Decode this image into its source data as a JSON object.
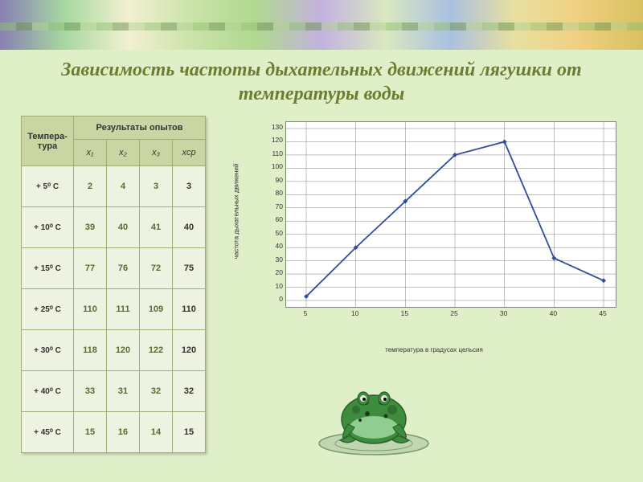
{
  "title": "Зависимость частоты дыхательных движений лягушки от температуры воды",
  "table": {
    "head_temp": "Темпера-\nтура",
    "head_results": "Результаты опытов",
    "sub": [
      "x₁",
      "x₂",
      "x₃",
      "xср"
    ],
    "rows": [
      {
        "t": "+ 5⁰ С",
        "v": [
          "2",
          "4",
          "3",
          "3"
        ]
      },
      {
        "t": "+ 10⁰ С",
        "v": [
          "39",
          "40",
          "41",
          "40"
        ]
      },
      {
        "t": "+ 15⁰ С",
        "v": [
          "77",
          "76",
          "72",
          "75"
        ]
      },
      {
        "t": "+ 25⁰ С",
        "v": [
          "110",
          "111",
          "109",
          "110"
        ]
      },
      {
        "t": "+ 30⁰ С",
        "v": [
          "118",
          "120",
          "122",
          "120"
        ]
      },
      {
        "t": "+ 40⁰ С",
        "v": [
          "33",
          "31",
          "32",
          "32"
        ]
      },
      {
        "t": "+ 45⁰ С",
        "v": [
          "15",
          "16",
          "14",
          "15"
        ]
      }
    ]
  },
  "chart": {
    "type": "line",
    "categories": [
      "5",
      "10",
      "15",
      "25",
      "30",
      "40",
      "45"
    ],
    "values": [
      3,
      40,
      75,
      110,
      120,
      32,
      15
    ],
    "ylim": [
      0,
      130
    ],
    "ytick_step": 10,
    "ylabel": "частота дыхательных движений",
    "xlabel": "температура в градусах цельсия",
    "line_color": "#2f4e9c",
    "marker_color": "#2f4e9c",
    "marker_size": 6,
    "background_color": "#ffffff",
    "grid_color": "#808080",
    "label_fontsize": 8,
    "tick_fontsize": 9
  },
  "style": {
    "title_color": "#6b7d2e",
    "title_fontsize": 24,
    "page_bg": "#dff0c8",
    "table_header_bg": "#c9d6a3",
    "table_cell_bg": "#eef2e0",
    "table_border": "#9fae78",
    "table_value_color": "#5a6b30",
    "frog_body": "#3e8c3e",
    "frog_dark": "#2a5e2a",
    "frog_light": "#a6dca6",
    "lily_pad": "#c0d6b0"
  }
}
